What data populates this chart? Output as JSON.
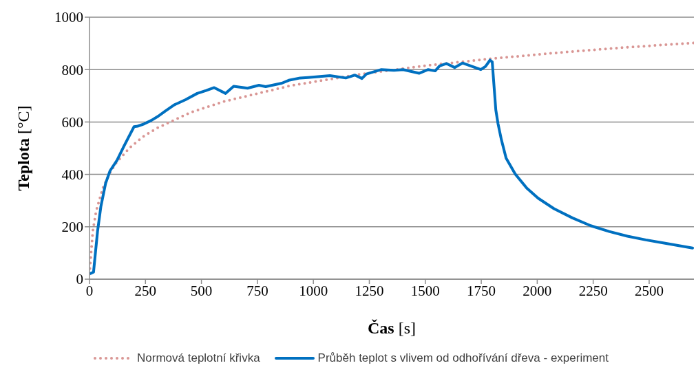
{
  "chart_data": {
    "type": "line",
    "xlabel": "Čas [s]",
    "ylabel": "Teplota [°C]",
    "xlim": [
      0,
      2700
    ],
    "xticks": [
      0,
      250,
      500,
      750,
      1000,
      1250,
      1500,
      1750,
      2000,
      2250,
      2500
    ],
    "ylim": [
      0,
      1000
    ],
    "yticks": [
      0,
      200,
      400,
      600,
      800,
      1000
    ],
    "grid": "y",
    "legend": "bottom",
    "marker": "none",
    "series": [
      {
        "name": "Normová teplotní křivka",
        "color": "#d99694",
        "line_style": "dotted",
        "x": [
          0,
          15,
          30,
          60,
          90,
          120,
          180,
          240,
          300,
          450,
          600,
          900,
          1200,
          1500,
          1800,
          2100,
          2400,
          2700
        ],
        "values": [
          20,
          185,
          261,
          349,
          404,
          445,
          502,
          544,
          576,
          636,
          678,
          739,
          781,
          815,
          842,
          865,
          885,
          902
        ]
      },
      {
        "name": "Průběh teplot s vlivem od odhořívání dřeva - experiment",
        "color": "#0070c0",
        "line_style": "solid",
        "x": [
          5,
          18,
          36,
          51,
          72,
          92,
          123,
          153,
          174,
          199,
          215,
          245,
          276,
          307,
          337,
          378,
          429,
          481,
          521,
          557,
          608,
          644,
          706,
          757,
          787,
          859,
          890,
          941,
          976,
          1074,
          1145,
          1186,
          1217,
          1237,
          1304,
          1360,
          1401,
          1472,
          1513,
          1544,
          1564,
          1595,
          1631,
          1666,
          1748,
          1769,
          1789,
          1799,
          1815,
          1825,
          1840,
          1861,
          1902,
          1953,
          2004,
          2075,
          2157,
          2239,
          2321,
          2403,
          2485,
          2567,
          2694
        ],
        "values": [
          22,
          27,
          183,
          278,
          366,
          414,
          454,
          506,
          541,
          582,
          584,
          593,
          606,
          622,
          641,
          665,
          685,
          709,
          720,
          731,
          709,
          736,
          729,
          740,
          735,
          748,
          759,
          768,
          770,
          777,
          768,
          779,
          766,
          783,
          800,
          797,
          800,
          786,
          800,
          795,
          814,
          823,
          808,
          825,
          800,
          812,
          836,
          829,
          646,
          593,
          532,
          462,
          401,
          348,
          309,
          269,
          234,
          204,
          182,
          164,
          150,
          138,
          119
        ]
      }
    ]
  }
}
